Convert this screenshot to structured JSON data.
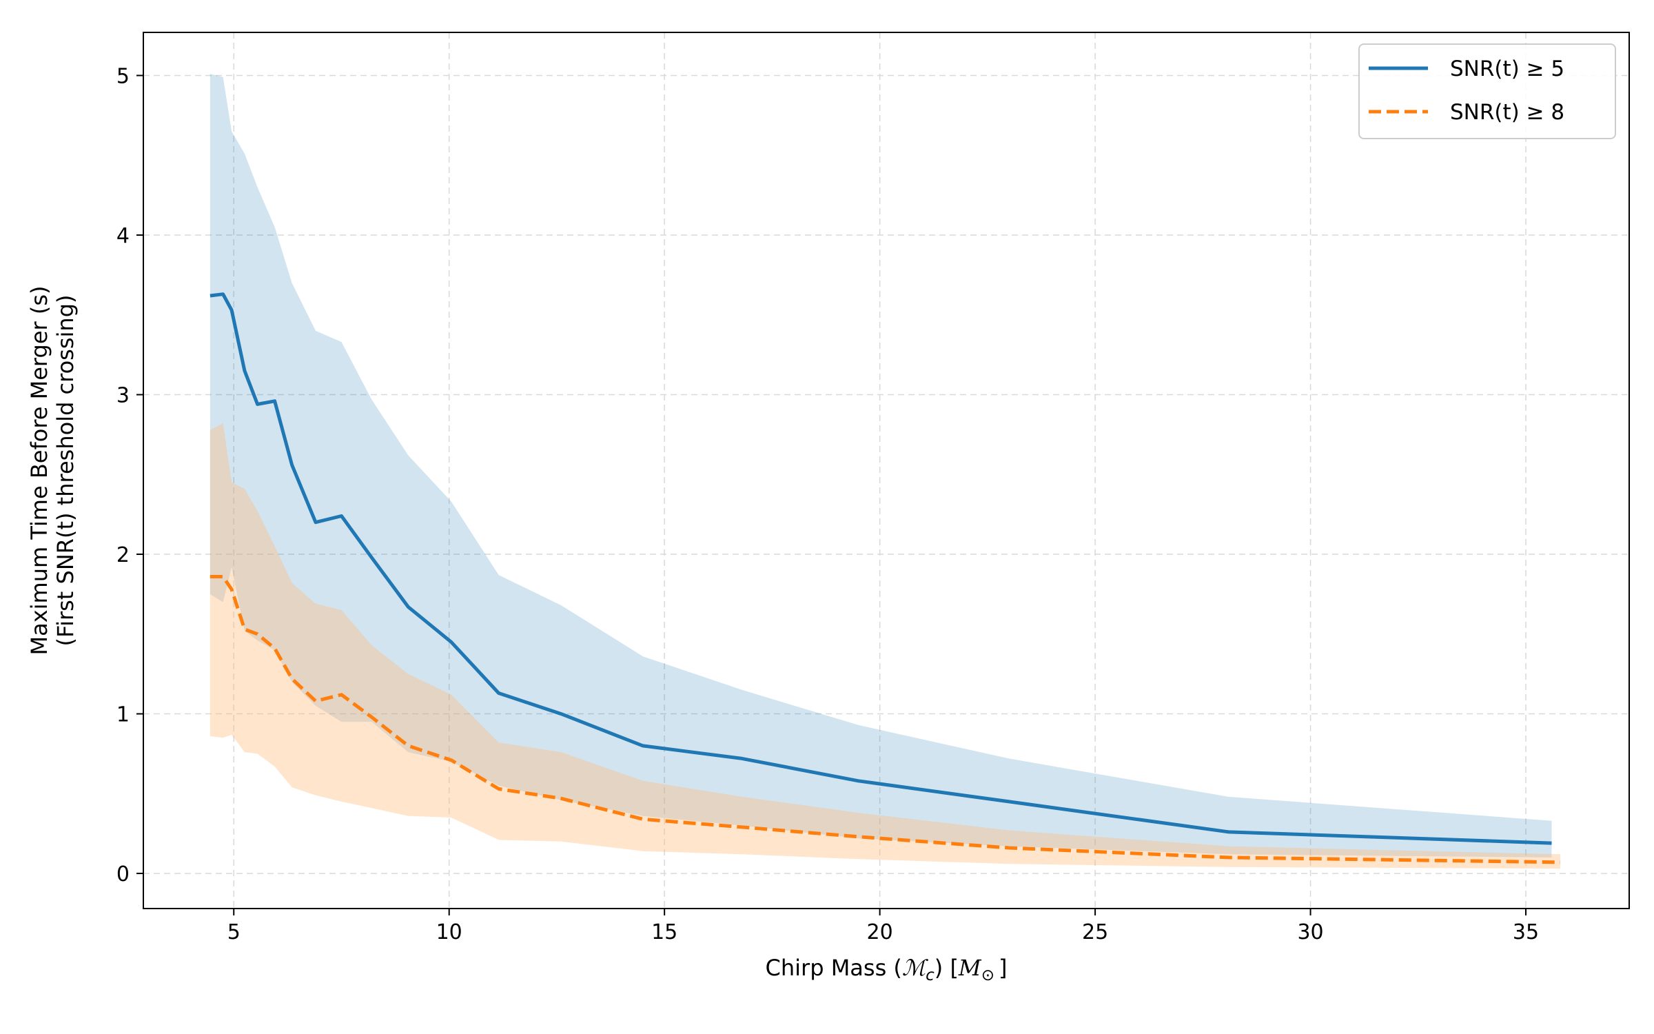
{
  "chart_data": {
    "type": "line",
    "title": "",
    "xlabel": "Chirp Mass (ℳc) [M⊙]",
    "xlabel_parts": {
      "prefix": "Chirp Mass (",
      "symbol": "ℳ",
      "symbol_sub": "c",
      "mid": ") [",
      "unit": "M",
      "unit_sub": "⊙",
      "suffix": "]"
    },
    "ylabel_lines": [
      "Maximum Time Before Merger (s)",
      "(First SNR(t) threshold crossing)"
    ],
    "xlim": [
      2.9,
      37.4
    ],
    "ylim": [
      -0.22,
      5.27
    ],
    "xticks": [
      5,
      10,
      15,
      20,
      25,
      30,
      35
    ],
    "yticks": [
      0,
      1,
      2,
      3,
      4,
      5
    ],
    "grid": true,
    "legend_position": "top-right",
    "series": [
      {
        "name": "SNR(t) ≥ 5",
        "color": "#1f77b4",
        "band_color": "#1f77b4",
        "linestyle": "solid",
        "x": [
          4.45,
          4.75,
          4.95,
          5.25,
          5.55,
          5.95,
          6.35,
          6.9,
          7.5,
          8.2,
          9.05,
          10.05,
          11.15,
          12.6,
          14.5,
          16.8,
          19.5,
          23.0,
          28.1,
          35.6
        ],
        "y": [
          3.62,
          3.63,
          3.53,
          3.15,
          2.94,
          2.96,
          2.56,
          2.2,
          2.24,
          1.98,
          1.67,
          1.45,
          1.13,
          1.0,
          0.8,
          0.72,
          0.58,
          0.45,
          0.26,
          0.19
        ],
        "upper": [
          5.01,
          4.99,
          4.65,
          4.51,
          4.3,
          4.05,
          3.7,
          3.4,
          3.33,
          2.97,
          2.62,
          2.33,
          1.87,
          1.68,
          1.36,
          1.15,
          0.93,
          0.72,
          0.48,
          0.33
        ],
        "lower": [
          1.75,
          1.7,
          1.92,
          1.52,
          1.46,
          1.4,
          1.2,
          1.05,
          0.95,
          0.95,
          0.76,
          0.7,
          0.55,
          0.46,
          0.36,
          0.3,
          0.22,
          0.17,
          0.12,
          0.1
        ]
      },
      {
        "name": "SNR(t) ≥ 8",
        "color": "#ff7f0e",
        "band_color": "#ffbb78",
        "linestyle": "dashed",
        "x": [
          4.45,
          4.75,
          4.95,
          5.25,
          5.55,
          5.95,
          6.35,
          6.9,
          7.5,
          8.2,
          9.05,
          10.05,
          11.15,
          12.6,
          14.5,
          16.8,
          19.5,
          23.0,
          28.1,
          35.8
        ],
        "y": [
          1.86,
          1.86,
          1.78,
          1.53,
          1.5,
          1.41,
          1.22,
          1.08,
          1.12,
          0.98,
          0.8,
          0.71,
          0.53,
          0.47,
          0.34,
          0.29,
          0.23,
          0.16,
          0.1,
          0.07
        ],
        "upper": [
          2.78,
          2.82,
          2.45,
          2.41,
          2.27,
          2.05,
          1.82,
          1.69,
          1.65,
          1.43,
          1.25,
          1.12,
          0.82,
          0.76,
          0.58,
          0.48,
          0.38,
          0.27,
          0.17,
          0.12
        ],
        "lower": [
          0.86,
          0.85,
          0.87,
          0.76,
          0.75,
          0.67,
          0.54,
          0.49,
          0.45,
          0.41,
          0.36,
          0.35,
          0.21,
          0.2,
          0.14,
          0.12,
          0.09,
          0.06,
          0.04,
          0.03
        ]
      }
    ]
  }
}
